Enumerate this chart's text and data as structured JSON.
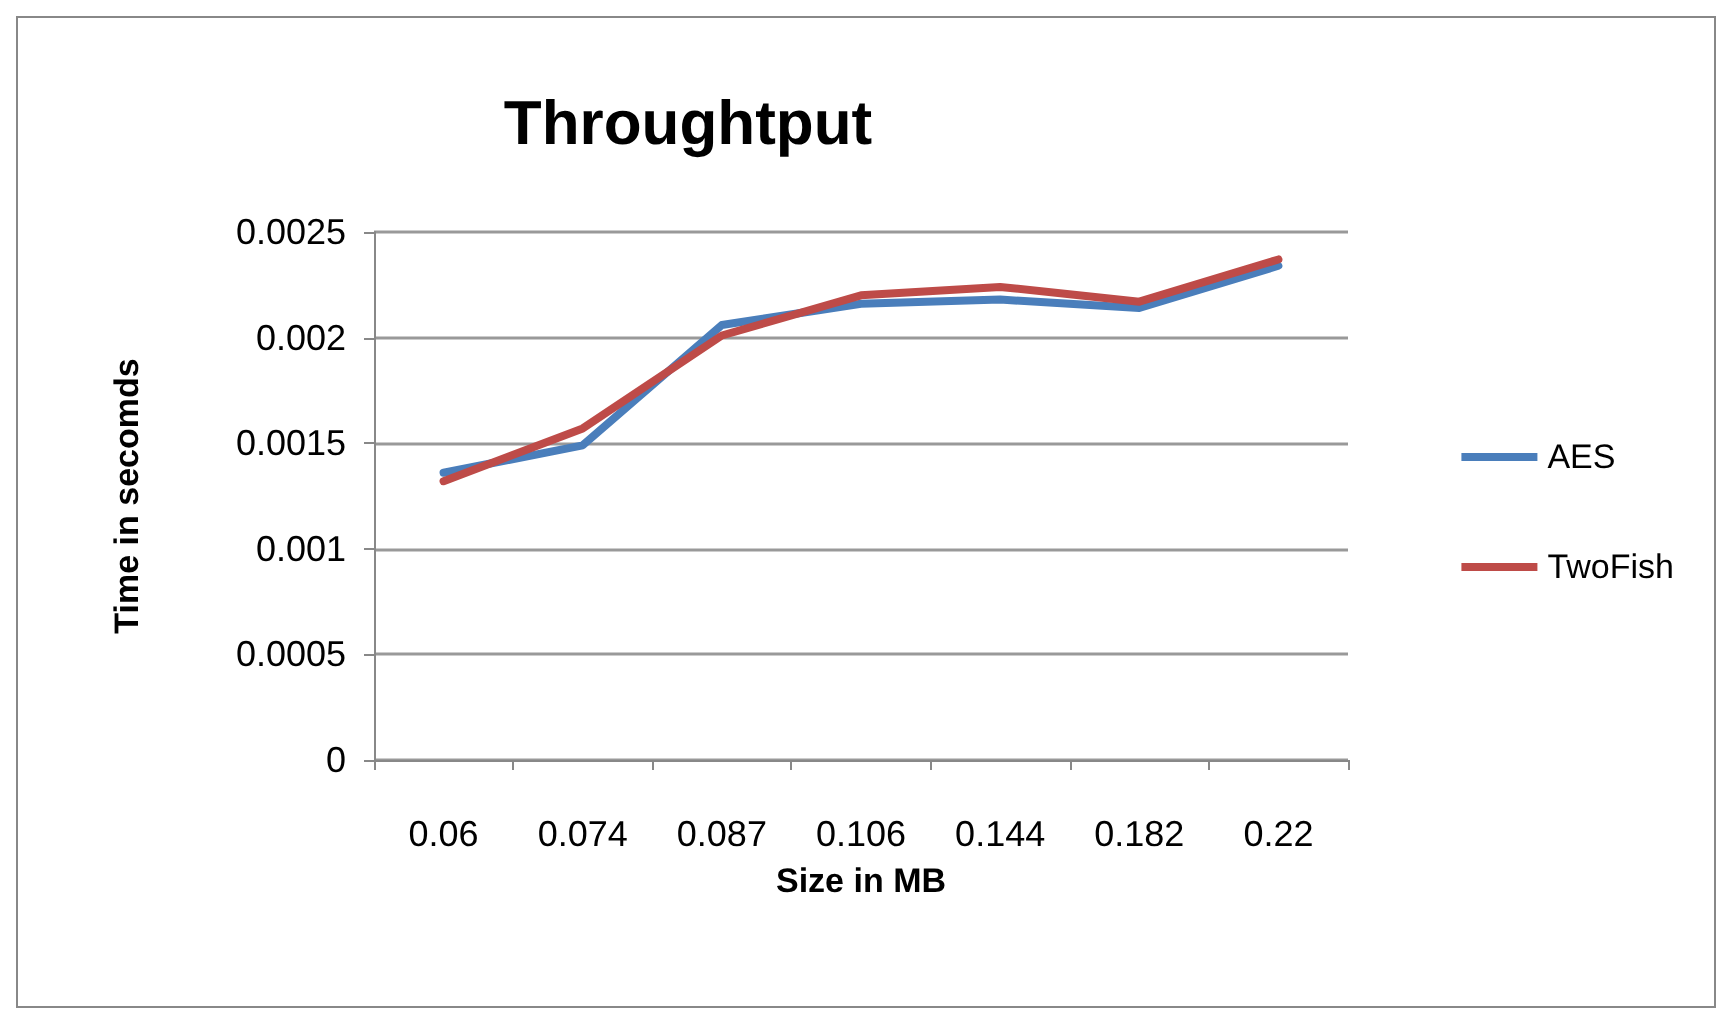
{
  "chart_data": {
    "type": "line",
    "title": "Throughtput",
    "xlabel": "Size in MB",
    "ylabel": "Time in secomds",
    "categories": [
      "0.06",
      "0.074",
      "0.087",
      "0.106",
      "0.144",
      "0.182",
      "0.22"
    ],
    "series": [
      {
        "name": "AES",
        "color": "#4a7ebb",
        "values": [
          0.00136,
          0.00149,
          0.00206,
          0.00216,
          0.00218,
          0.00214,
          0.00234
        ]
      },
      {
        "name": "TwoFish",
        "color": "#be4b48",
        "values": [
          0.00132,
          0.00157,
          0.00201,
          0.0022,
          0.00224,
          0.00217,
          0.00237
        ]
      }
    ],
    "ylim": [
      0,
      0.0025
    ],
    "yticks": [
      0,
      0.0005,
      0.001,
      0.0015,
      0.002,
      0.0025
    ],
    "grid": "y",
    "legend": "right",
    "marker": "none",
    "line_style": "solid"
  }
}
